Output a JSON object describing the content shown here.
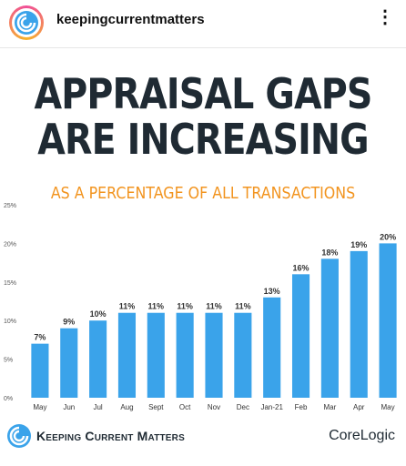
{
  "header": {
    "username": "keepingcurrentmatters",
    "more_icon": "more-options-icon"
  },
  "headline": {
    "line1": "APPRAISAL GAPS",
    "line2": "ARE INCREASING"
  },
  "subtitle": "AS A PERCENTAGE OF ALL TRANSACTIONS",
  "colors": {
    "bar": "#3aa3ea",
    "headline": "#1f2a33",
    "subtitle": "#f2941f"
  },
  "chart_data": {
    "type": "bar",
    "categories": [
      "May",
      "Jun",
      "Jul",
      "Aug",
      "Sept",
      "Oct",
      "Nov",
      "Dec",
      "Jan-21",
      "Feb",
      "Mar",
      "Apr",
      "May"
    ],
    "values": [
      7,
      9,
      10,
      11,
      11,
      11,
      11,
      11,
      13,
      16,
      18,
      19,
      20
    ],
    "data_labels": [
      "7%",
      "9%",
      "10%",
      "11%",
      "11%",
      "11%",
      "11%",
      "11%",
      "13%",
      "16%",
      "18%",
      "19%",
      "20%"
    ],
    "yticks": [
      "0%",
      "5%",
      "10%",
      "15%",
      "20%",
      "25%"
    ],
    "ylim": [
      0,
      25
    ],
    "grid": false
  },
  "footer": {
    "brand": "Keeping Current Matters",
    "partner": "CoreLogic"
  }
}
